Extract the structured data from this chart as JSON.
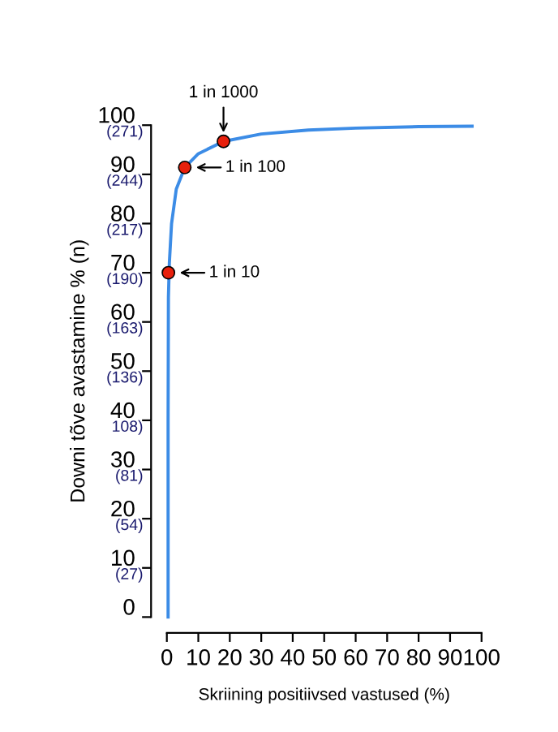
{
  "chart_data": {
    "type": "line",
    "xlabel": "Skriining positiivsed vastused (%)",
    "ylabel": "Downi tõve avastamine % (n)",
    "xlim": [
      0,
      100
    ],
    "ylim": [
      0,
      100
    ],
    "xticks": [
      0,
      10,
      20,
      30,
      40,
      50,
      60,
      70,
      80,
      90,
      100
    ],
    "yticks": [
      0,
      10,
      20,
      30,
      40,
      50,
      60,
      70,
      80,
      90,
      100
    ],
    "grid": false,
    "legend": false,
    "series": [
      {
        "color": "#3c8ce6",
        "marker": "none",
        "line_style": "solid",
        "x": [
          0.4,
          0.4,
          0.5,
          0.8,
          1.5,
          3,
          5.7,
          10,
          18,
          30,
          45,
          60,
          80,
          97
        ],
        "values": [
          0,
          40,
          65,
          72,
          80,
          87,
          91.4,
          94.2,
          96.7,
          98.2,
          99,
          99.4,
          99.7,
          99.8
        ]
      },
      {
        "type": "scatter",
        "color": "#e8200c",
        "marker": "circle",
        "x": [
          0.5,
          5.7,
          18
        ],
        "values": [
          70,
          91.4,
          96.7
        ]
      }
    ],
    "annotations": [
      {
        "text": "1 in 10",
        "x": 0.5,
        "y": 70
      },
      {
        "text": "1 in 100",
        "x": 5.7,
        "y": 91.4
      },
      {
        "text": "1 in 1000",
        "x": 18,
        "y": 96.7
      },
      "(271)",
      "(244)",
      "(217)",
      "(190)",
      "(163)",
      "(136)",
      "108)",
      "(81)",
      "(54)",
      "(27)"
    ]
  }
}
